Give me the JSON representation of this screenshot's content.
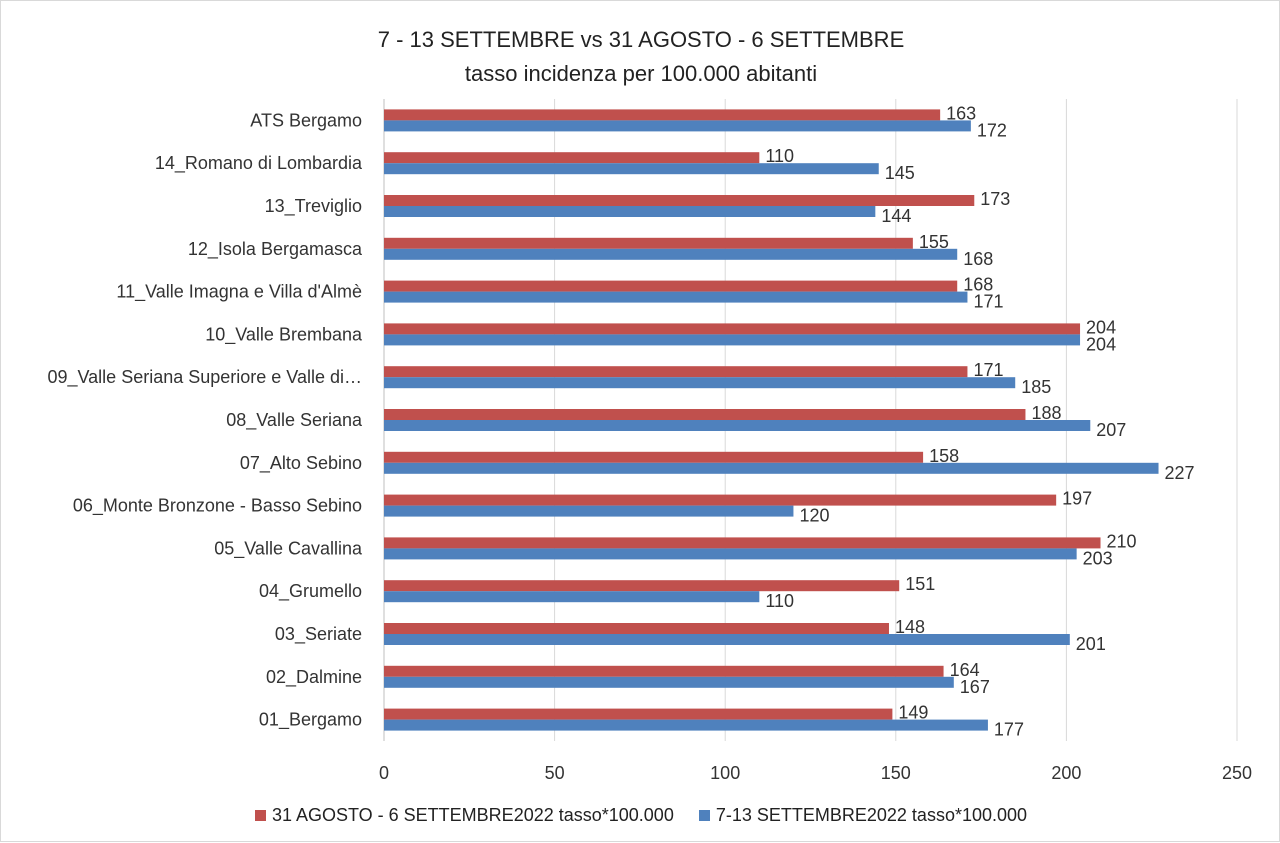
{
  "chart_data": {
    "type": "bar",
    "orientation": "horizontal",
    "title": "7 - 13 SETTEMBRE vs 31 AGOSTO - 6 SETTEMBRE",
    "subtitle": "tasso incidenza per 100.000 abitanti",
    "categories": [
      "ATS Bergamo",
      "14_Romano di Lombardia",
      "13_Treviglio",
      "12_Isola Bergamasca",
      "11_Valle Imagna e Villa d'Almè",
      "10_Valle Brembana",
      "09_Valle Seriana Superiore e Valle di…",
      "08_Valle Seriana",
      "07_Alto Sebino",
      "06_Monte Bronzone - Basso Sebino",
      "05_Valle Cavallina",
      "04_Grumello",
      "03_Seriate",
      "02_Dalmine",
      "01_Bergamo"
    ],
    "series": [
      {
        "name": "31 AGOSTO - 6 SETTEMBRE2022 tasso*100.000",
        "color": "#c0504d",
        "values": [
          163,
          110,
          173,
          155,
          168,
          204,
          171,
          188,
          158,
          197,
          210,
          151,
          148,
          164,
          149
        ]
      },
      {
        "name": "7-13  SETTEMBRE2022 tasso*100.000",
        "color": "#4f81bd",
        "values": [
          172,
          145,
          144,
          168,
          171,
          204,
          185,
          207,
          227,
          120,
          203,
          110,
          201,
          167,
          177
        ]
      }
    ],
    "xlim": [
      0,
      250
    ],
    "xticks": [
      0,
      50,
      100,
      150,
      200,
      250
    ],
    "grid": true,
    "legend_position": "bottom"
  }
}
